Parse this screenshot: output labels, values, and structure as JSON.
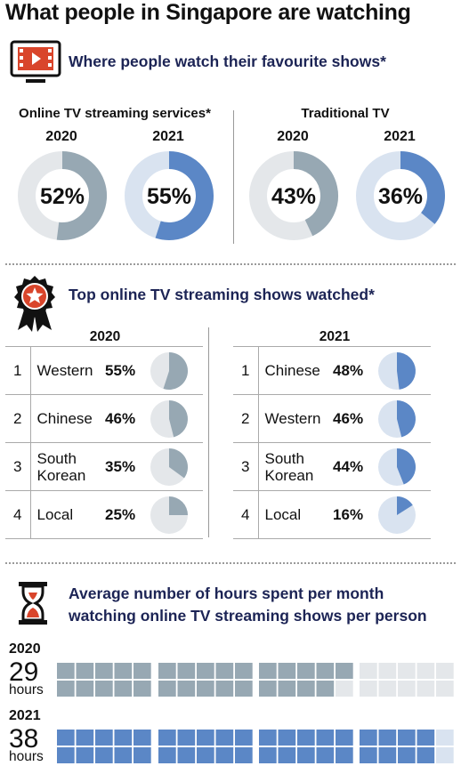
{
  "title": "What people in Singapore are watching",
  "section1": {
    "title": "Where people watch their favourite shows*",
    "icon": "tv-play-icon",
    "groups": [
      {
        "label": "Online TV streaming services*"
      },
      {
        "label": "Traditional TV"
      }
    ]
  },
  "section2": {
    "title": "Top online TV streaming shows watched*",
    "icon": "award-ribbon-icon",
    "year_2020": "2020",
    "year_2021": "2021"
  },
  "section3": {
    "title_line1": "Average number of hours spent per month",
    "title_line2": "watching online TV streaming shows per person",
    "icon": "hourglass-icon",
    "unit": "hours"
  },
  "colors": {
    "grey_fill": "#97a8b3",
    "grey_track": "#e4e7ea",
    "blue_fill": "#5b87c6",
    "blue_track": "#d9e3f0",
    "title_navy": "#1c2455",
    "accent_red": "#d9452b"
  },
  "chart_data": [
    {
      "type": "pie",
      "title": "Online TV streaming services*",
      "categories": [
        "2020",
        "2021"
      ],
      "values": [
        52,
        55
      ],
      "labels": [
        "52%",
        "55%"
      ]
    },
    {
      "type": "pie",
      "title": "Traditional TV",
      "categories": [
        "2020",
        "2021"
      ],
      "values": [
        43,
        36
      ],
      "labels": [
        "43%",
        "36%"
      ]
    },
    {
      "type": "table",
      "title": "2020",
      "rows": [
        {
          "rank": "1",
          "line1": "Western",
          "line2": "",
          "value": 55,
          "label": "55%"
        },
        {
          "rank": "2",
          "line1": "Chinese",
          "line2": "",
          "value": 46,
          "label": "46%"
        },
        {
          "rank": "3",
          "line1": "South",
          "line2": "Korean",
          "value": 35,
          "label": "35%"
        },
        {
          "rank": "4",
          "line1": "Local",
          "line2": "",
          "value": 25,
          "label": "25%"
        }
      ]
    },
    {
      "type": "table",
      "title": "2021",
      "rows": [
        {
          "rank": "1",
          "line1": "Chinese",
          "line2": "",
          "value": 48,
          "label": "48%"
        },
        {
          "rank": "2",
          "line1": "Western",
          "line2": "",
          "value": 46,
          "label": "46%"
        },
        {
          "rank": "3",
          "line1": "South",
          "line2": "Korean",
          "value": 44,
          "label": "44%"
        },
        {
          "rank": "4",
          "line1": "Local",
          "line2": "",
          "value": 16,
          "label": "16%"
        }
      ]
    },
    {
      "type": "bar",
      "title": "Average number of hours spent per month watching online TV streaming shows per person",
      "categories": [
        "2020",
        "2021"
      ],
      "values": [
        29,
        38
      ],
      "labels": [
        "29",
        "38"
      ]
    }
  ]
}
